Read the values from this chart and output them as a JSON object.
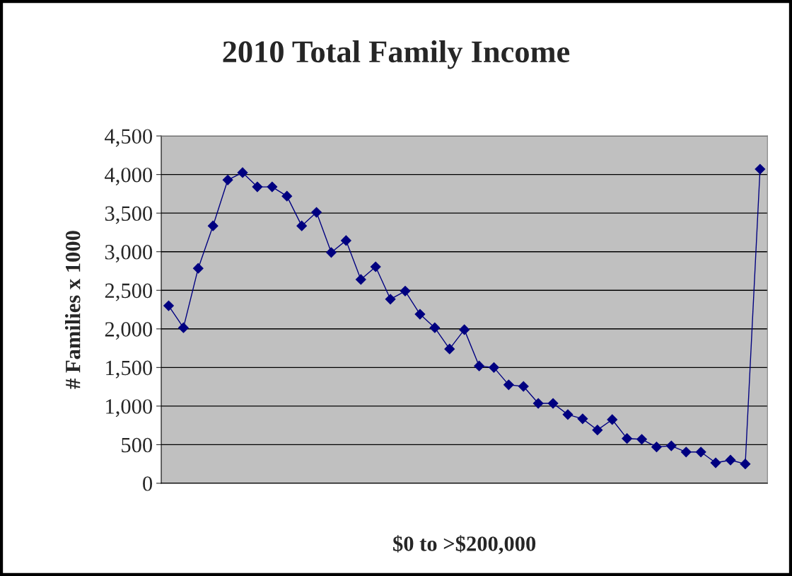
{
  "chart_data": {
    "type": "line",
    "title": "2010 Total Family Income",
    "xlabel": "$0 to >$200,000",
    "ylabel": "# Families x 1000",
    "categories": [
      null,
      null,
      null,
      null,
      null,
      null,
      null,
      null,
      null,
      null,
      null,
      null,
      null,
      null,
      null,
      null,
      null,
      null,
      null,
      null,
      null,
      null,
      null,
      null,
      null,
      null,
      null,
      null,
      null,
      null,
      null,
      null,
      null,
      null,
      null,
      null,
      null,
      null,
      null,
      null,
      null
    ],
    "series": [
      {
        "color": "#000080",
        "values": [
          2300,
          2015,
          2785,
          3335,
          3930,
          4025,
          3840,
          3840,
          3720,
          3335,
          3510,
          2990,
          3145,
          2640,
          2805,
          2385,
          2490,
          2190,
          2015,
          1740,
          1990,
          1520,
          1500,
          1275,
          1255,
          1035,
          1035,
          890,
          835,
          690,
          825,
          580,
          570,
          470,
          485,
          405,
          405,
          265,
          300,
          250,
          4070
        ]
      }
    ],
    "ylim": [
      0,
      4500
    ],
    "yticks": [
      0,
      500,
      {
        "value": 1000,
        "label": "1,000"
      },
      {
        "value": 1500,
        "label": "1,500"
      },
      {
        "value": 2000,
        "label": "2,000"
      },
      {
        "value": 2500,
        "label": "2,500"
      },
      {
        "value": 3000,
        "label": "3,000"
      },
      {
        "value": 3500,
        "label": "3,500"
      },
      {
        "value": 4000,
        "label": "4,000"
      },
      {
        "value": 4500,
        "label": "4,500"
      }
    ],
    "grid": "y",
    "marker": "diamond",
    "line_style": "solid",
    "legend": false
  }
}
